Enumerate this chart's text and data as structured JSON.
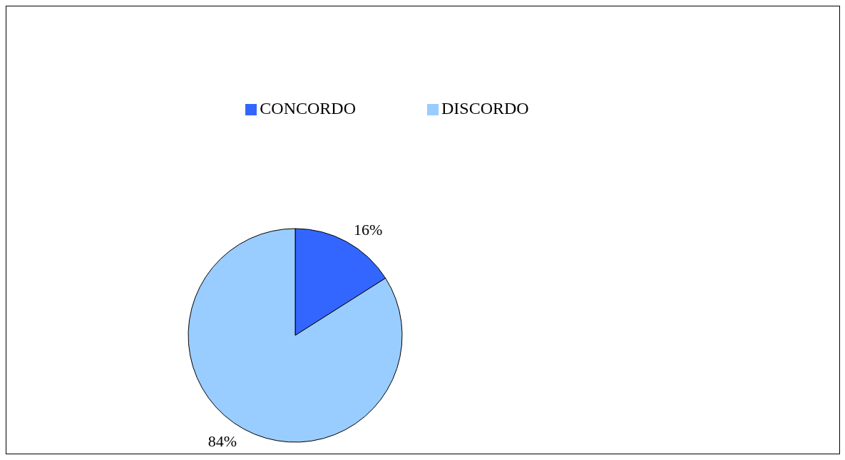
{
  "chart_data": {
    "type": "pie",
    "categories": [
      "CONCORDO",
      "DISCORDO"
    ],
    "values": [
      16,
      84
    ],
    "colors": [
      "#3366ff",
      "#99ccff"
    ],
    "value_labels": [
      "16%",
      "84%"
    ],
    "legend": "top"
  }
}
